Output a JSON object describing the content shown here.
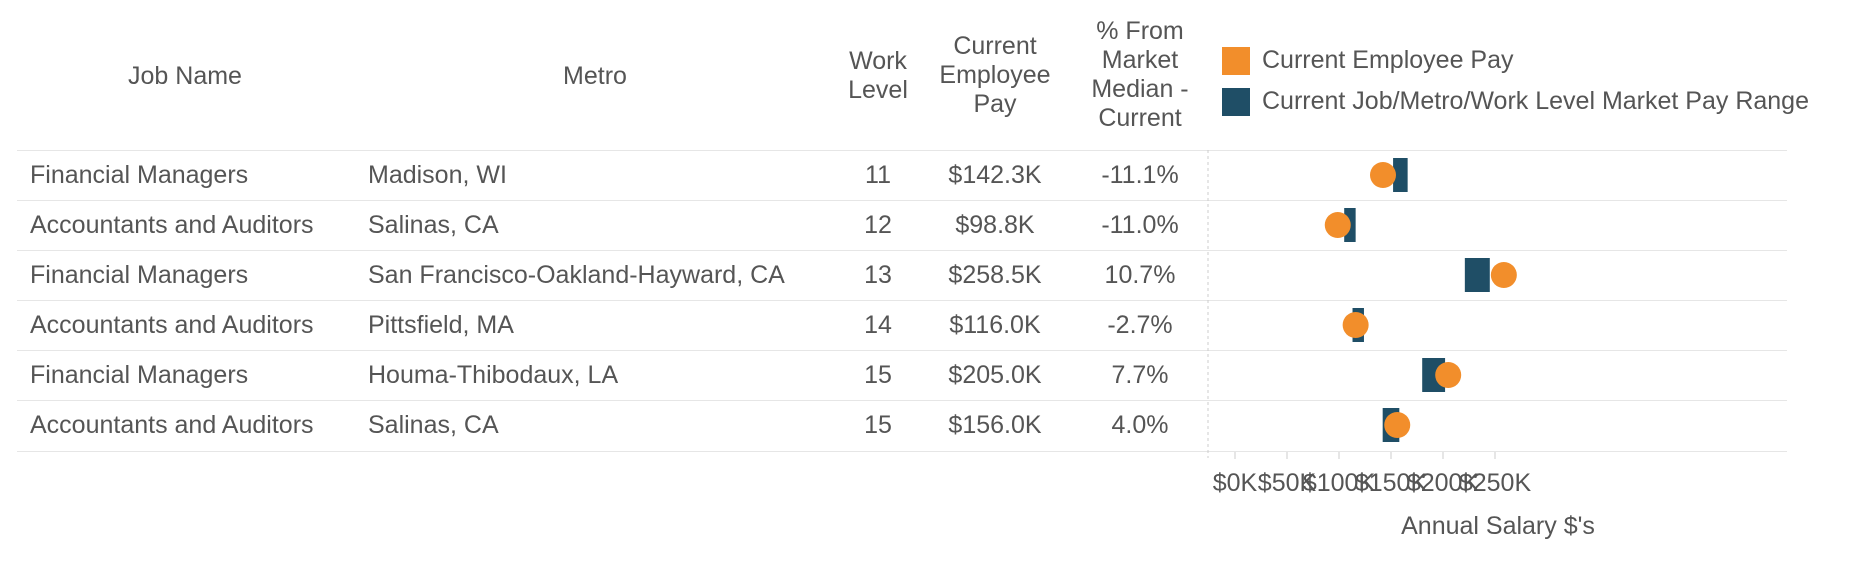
{
  "table": {
    "headers": {
      "job_name": "Job Name",
      "metro": "Metro",
      "work_level": "Work Level",
      "current_pay": "Current Employee Pay",
      "pct_from_median": "% From Market Median - Current"
    },
    "rows": [
      {
        "job": "Financial Managers",
        "metro": "Madison, WI",
        "level": "11",
        "pay": "$142.3K",
        "pct": "-11.1%"
      },
      {
        "job": "Accountants and Auditors",
        "metro": "Salinas, CA",
        "level": "12",
        "pay": "$98.8K",
        "pct": "-11.0%"
      },
      {
        "job": "Financial Managers",
        "metro": "San Francisco-Oakland-Hayward, CA",
        "level": "13",
        "pay": "$258.5K",
        "pct": "10.7%"
      },
      {
        "job": "Accountants and Auditors",
        "metro": "Pittsfield, MA",
        "level": "14",
        "pay": "$116.0K",
        "pct": "-2.7%"
      },
      {
        "job": "Financial Managers",
        "metro": "Houma-Thibodaux, LA",
        "level": "15",
        "pay": "$205.0K",
        "pct": "7.7%"
      },
      {
        "job": "Accountants and Auditors",
        "metro": "Salinas, CA",
        "level": "15",
        "pay": "$156.0K",
        "pct": "4.0%"
      }
    ]
  },
  "legend": {
    "employee_pay": "Current Employee Pay",
    "market_range": "Current Job/Metro/Work Level Market Pay Range"
  },
  "colors": {
    "employee_pay": "#f28e2b",
    "market_range": "#1f4e66"
  },
  "chart_data": {
    "type": "scatter",
    "xlabel": "Annual Salary $'s",
    "xlim": [
      0,
      280000
    ],
    "ticks": [
      0,
      50000,
      100000,
      150000,
      200000,
      250000
    ],
    "tick_labels": [
      "$0K",
      "$50K",
      "$100K",
      "$150K",
      "$200K",
      "$250K"
    ],
    "series": [
      {
        "name": "Current Employee Pay",
        "marker": "circle",
        "values": [
          142300,
          98800,
          258500,
          116000,
          205000,
          156000
        ]
      },
      {
        "name": "Current Job/Metro/Work Level Market Pay Range",
        "marker": "range",
        "ranges": [
          [
            152000,
            166000
          ],
          [
            105000,
            116000
          ],
          [
            221000,
            245000
          ],
          [
            113000,
            124000
          ],
          [
            180000,
            202000
          ],
          [
            142000,
            158000
          ]
        ]
      }
    ]
  }
}
